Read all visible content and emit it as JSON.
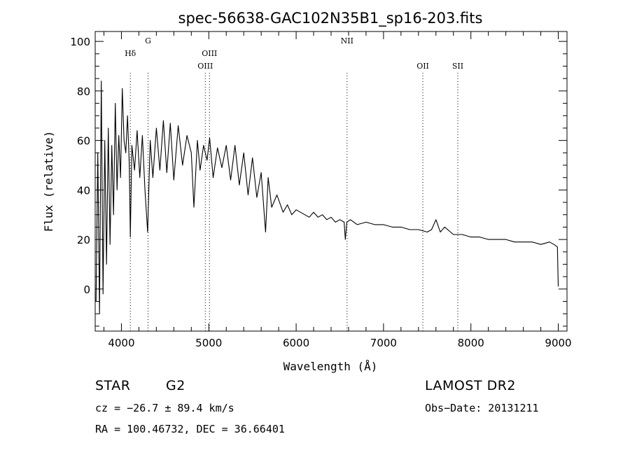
{
  "chart_data": {
    "type": "line",
    "title": "spec-56638-GAC102N35B1_sp16-203.fits",
    "xlabel": "Wavelength (Å)",
    "ylabel": "Flux (relative)",
    "xlim": [
      3700,
      9100
    ],
    "ylim": [
      -17,
      104
    ],
    "x_ticks": [
      4000,
      5000,
      6000,
      7000,
      8000,
      9000
    ],
    "x_tick_labels": [
      "4000",
      "5000",
      "6000",
      "7000",
      "8000",
      "9000"
    ],
    "y_ticks": [
      0,
      20,
      40,
      60,
      80,
      100
    ],
    "y_tick_labels": [
      "0",
      "20",
      "40",
      "60",
      "80",
      "100"
    ],
    "x_minor_step": 200,
    "y_minor_step": 5,
    "grid": false,
    "series": [
      {
        "x": [
          3710,
          3730,
          3750,
          3770,
          3790,
          3810,
          3830,
          3850,
          3870,
          3890,
          3910,
          3930,
          3950,
          3970,
          3990,
          4010,
          4030,
          4050,
          4070,
          4090,
          4102,
          4120,
          4150,
          4180,
          4210,
          4240,
          4270,
          4300,
          4330,
          4360,
          4400,
          4440,
          4480,
          4520,
          4560,
          4600,
          4650,
          4700,
          4750,
          4800,
          4830,
          4870,
          4900,
          4940,
          4980,
          5010,
          5050,
          5100,
          5150,
          5200,
          5250,
          5300,
          5350,
          5400,
          5450,
          5500,
          5550,
          5600,
          5650,
          5680,
          5720,
          5780,
          5850,
          5900,
          5950,
          6000,
          6050,
          6100,
          6150,
          6200,
          6250,
          6300,
          6350,
          6400,
          6450,
          6500,
          6550,
          6563,
          6580,
          6620,
          6700,
          6800,
          6900,
          7000,
          7100,
          7200,
          7300,
          7400,
          7500,
          7550,
          7600,
          7650,
          7700,
          7800,
          7900,
          8000,
          8100,
          8200,
          8300,
          8400,
          8500,
          8600,
          8700,
          8800,
          8900,
          8950,
          8990,
          9000
        ],
        "y": [
          -5,
          55,
          -10,
          84,
          -2,
          60,
          10,
          65,
          18,
          58,
          30,
          75,
          40,
          62,
          45,
          81,
          60,
          55,
          70,
          50,
          21,
          58,
          48,
          64,
          45,
          62,
          40,
          23,
          60,
          45,
          65,
          48,
          68,
          47,
          67,
          44,
          66,
          50,
          62,
          55,
          33,
          60,
          48,
          58,
          52,
          61,
          45,
          57,
          49,
          58,
          44,
          58,
          42,
          55,
          38,
          53,
          37,
          47,
          23,
          45,
          33,
          38,
          31,
          34,
          30,
          32,
          31,
          30,
          29,
          31,
          29,
          30,
          28,
          29,
          27,
          28,
          27,
          20,
          27,
          28,
          26,
          27,
          26,
          26,
          25,
          25,
          24,
          24,
          23,
          24,
          28,
          23,
          25,
          22,
          22,
          21,
          21,
          20,
          20,
          20,
          19,
          19,
          19,
          18,
          19,
          18,
          17,
          1
        ]
      }
    ],
    "lines": [
      {
        "label": "Hδ",
        "x": 4102,
        "row": 1
      },
      {
        "label": "G",
        "x": 4305,
        "row": 0
      },
      {
        "label": "OIII",
        "x": 4960,
        "row": 2
      },
      {
        "label": "OIII",
        "x": 5008,
        "row": 1
      },
      {
        "label": "NII",
        "x": 6583,
        "row": 0
      },
      {
        "label": "OII",
        "x": 7450,
        "row": 2
      },
      {
        "label": "SII",
        "x": 7850,
        "row": 2
      }
    ]
  },
  "info": {
    "object_type": "STAR",
    "subclass": "G2",
    "survey": "LAMOST DR2",
    "cz": "cz = −26.7 ± 89.4 km/s",
    "obs_date": "Obs−Date: 20131211",
    "coords": "RA = 100.46732, DEC =  36.66401"
  }
}
